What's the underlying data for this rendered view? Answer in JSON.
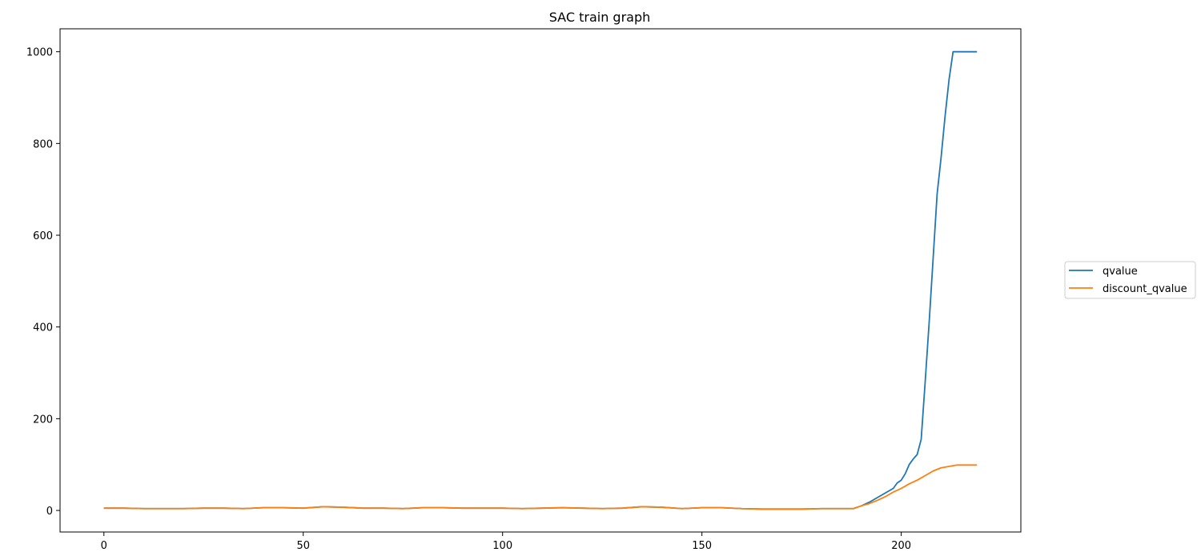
{
  "chart_data": {
    "type": "line",
    "title": "SAC train graph",
    "xlabel": "",
    "ylabel": "",
    "xlim": [
      -11,
      230
    ],
    "ylim": [
      -47,
      1050
    ],
    "xticks": [
      0,
      50,
      100,
      150,
      200
    ],
    "yticks": [
      0,
      200,
      400,
      600,
      800,
      1000
    ],
    "grid": false,
    "legend_position": "outside-right",
    "series": [
      {
        "name": "qvalue",
        "color": "#1f77b4",
        "points": [
          [
            0,
            5
          ],
          [
            5,
            5
          ],
          [
            10,
            4
          ],
          [
            15,
            4
          ],
          [
            20,
            4
          ],
          [
            25,
            5
          ],
          [
            30,
            5
          ],
          [
            35,
            4
          ],
          [
            40,
            6
          ],
          [
            45,
            6
          ],
          [
            50,
            5
          ],
          [
            55,
            8
          ],
          [
            60,
            7
          ],
          [
            65,
            5
          ],
          [
            70,
            5
          ],
          [
            75,
            4
          ],
          [
            80,
            6
          ],
          [
            85,
            6
          ],
          [
            90,
            5
          ],
          [
            95,
            5
          ],
          [
            100,
            5
          ],
          [
            105,
            4
          ],
          [
            110,
            5
          ],
          [
            115,
            6
          ],
          [
            120,
            5
          ],
          [
            125,
            4
          ],
          [
            130,
            5
          ],
          [
            135,
            8
          ],
          [
            140,
            7
          ],
          [
            145,
            4
          ],
          [
            150,
            6
          ],
          [
            155,
            6
          ],
          [
            160,
            4
          ],
          [
            165,
            3
          ],
          [
            170,
            3
          ],
          [
            175,
            3
          ],
          [
            180,
            4
          ],
          [
            185,
            4
          ],
          [
            188,
            4
          ],
          [
            190,
            10
          ],
          [
            192,
            18
          ],
          [
            194,
            28
          ],
          [
            196,
            38
          ],
          [
            198,
            48
          ],
          [
            199,
            60
          ],
          [
            200,
            66
          ],
          [
            201,
            80
          ],
          [
            202,
            100
          ],
          [
            203,
            112
          ],
          [
            204,
            122
          ],
          [
            205,
            155
          ],
          [
            206,
            280
          ],
          [
            207,
            410
          ],
          [
            208,
            550
          ],
          [
            209,
            690
          ],
          [
            210,
            770
          ],
          [
            211,
            860
          ],
          [
            212,
            940
          ],
          [
            213,
            1000
          ],
          [
            214,
            1000
          ],
          [
            215,
            1000
          ],
          [
            216,
            1000
          ],
          [
            217,
            1000
          ],
          [
            218,
            1000
          ],
          [
            219,
            1000
          ]
        ]
      },
      {
        "name": "discount_qvalue",
        "color": "#ff7f0e",
        "points": [
          [
            0,
            5
          ],
          [
            5,
            5
          ],
          [
            10,
            4
          ],
          [
            15,
            4
          ],
          [
            20,
            4
          ],
          [
            25,
            5
          ],
          [
            30,
            5
          ],
          [
            35,
            4
          ],
          [
            40,
            6
          ],
          [
            45,
            6
          ],
          [
            50,
            5
          ],
          [
            55,
            8
          ],
          [
            60,
            7
          ],
          [
            65,
            5
          ],
          [
            70,
            5
          ],
          [
            75,
            4
          ],
          [
            80,
            6
          ],
          [
            85,
            6
          ],
          [
            90,
            5
          ],
          [
            95,
            5
          ],
          [
            100,
            5
          ],
          [
            105,
            4
          ],
          [
            110,
            5
          ],
          [
            115,
            6
          ],
          [
            120,
            5
          ],
          [
            125,
            4
          ],
          [
            130,
            5
          ],
          [
            135,
            8
          ],
          [
            140,
            7
          ],
          [
            145,
            4
          ],
          [
            150,
            6
          ],
          [
            155,
            6
          ],
          [
            160,
            4
          ],
          [
            165,
            3
          ],
          [
            170,
            3
          ],
          [
            175,
            3
          ],
          [
            180,
            4
          ],
          [
            185,
            4
          ],
          [
            188,
            4
          ],
          [
            190,
            10
          ],
          [
            192,
            15
          ],
          [
            194,
            22
          ],
          [
            196,
            30
          ],
          [
            198,
            40
          ],
          [
            200,
            48
          ],
          [
            202,
            58
          ],
          [
            204,
            66
          ],
          [
            206,
            76
          ],
          [
            208,
            86
          ],
          [
            210,
            93
          ],
          [
            212,
            96
          ],
          [
            214,
            99
          ],
          [
            216,
            99
          ],
          [
            218,
            99
          ],
          [
            219,
            99
          ]
        ]
      }
    ]
  }
}
